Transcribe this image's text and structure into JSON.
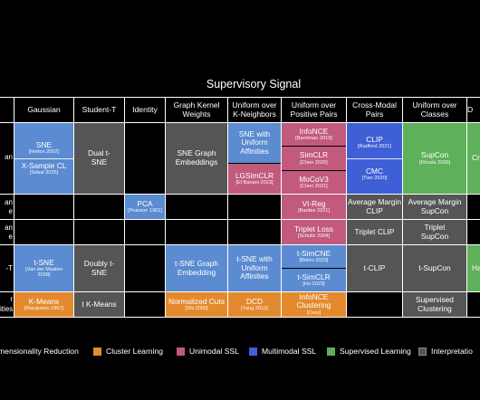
{
  "title": "Supervisory Signal",
  "headers": {
    "gaussian": "Gaussian",
    "student_t": "Student-T",
    "identity": "Identity",
    "graph_kernel": "Graph Kernel Weights",
    "uniform_kneighbors": "Uniform over K-Neighbors",
    "uniform_positive": "Uniform over Positive Pairs",
    "cross_modal": "Cross-Modal Pairs",
    "uniform_classes": "Uniform over Classes",
    "partial_d": "D"
  },
  "row_labels": {
    "r1": "an",
    "r2a": "an",
    "r2b": "e",
    "r3a": "an",
    "r3b": "e",
    "r4": "-T",
    "r5a": "r",
    "r5b": "ities"
  },
  "cells": {
    "sne": {
      "main": "SNE",
      "ref": "[Hinton 2002]"
    },
    "xsample": {
      "main": "X-Sample CL",
      "ref": "[Sobal 2025]"
    },
    "dual_tsne": {
      "main": "Dual t-SNE"
    },
    "sne_graph": {
      "main": "SNE Graph Embeddings"
    },
    "sne_uniform": {
      "main": "SNE with Uniform Affinities"
    },
    "lgsimclr": {
      "main": "LGSimCLR",
      "ref": "[El Banani 2023]"
    },
    "infonce": {
      "main": "InfoNCE",
      "ref": "[Bachman 2019]"
    },
    "simclr": {
      "main": "SimCLR",
      "ref": "[Chen 2020]"
    },
    "mocov3": {
      "main": "MoCoV3",
      "ref": "[Chen 2021]"
    },
    "clip": {
      "main": "CLIP",
      "ref": "[Radford 2021]"
    },
    "cmc": {
      "main": "CMC",
      "ref": "[Tian 2020]"
    },
    "supcon": {
      "main": "SupCon",
      "ref": "[Khosla 2020]"
    },
    "partial_cr": {
      "main": "Cr"
    },
    "pca": {
      "main": "PCA",
      "ref": "[Pearson 1901]"
    },
    "vicreg": {
      "main": "VI-Reg",
      "ref": "[Bardes 2021]"
    },
    "avg_margin_clip": {
      "main": "Average Margin CLIP"
    },
    "avg_margin_supcon": {
      "main": "Average Margin SupCon"
    },
    "triplet_loss": {
      "main": "Triplet Loss",
      "ref": "[Schultz 2004]"
    },
    "triplet_clip": {
      "main": "Triplet CLIP"
    },
    "triplet_supcon": {
      "main": "Triplet SupCon"
    },
    "tsne": {
      "main": "t-SNE",
      "ref": "[Van der Maaten 2008]"
    },
    "doubly_tsne": {
      "main": "Doubly t-SNE"
    },
    "tsne_graph": {
      "main": "t-SNE Graph Embedding"
    },
    "tsne_uniform": {
      "main": "t-SNE with Uniform Affinities"
    },
    "tsimcne": {
      "main": "t-SimCNE",
      "ref": "[Böhm 2023]"
    },
    "tsimclr": {
      "main": "t-SimCLR",
      "ref": "[Hu 2023]"
    },
    "tclip": {
      "main": "t-CLIP"
    },
    "tsupcon": {
      "main": "t-SupCon"
    },
    "partial_ha": {
      "main": "Ha"
    },
    "kmeans": {
      "main": "K-Means",
      "ref": "[Macqueen 1967]"
    },
    "tkmeans": {
      "main": "t K-Means"
    },
    "ncuts": {
      "main": "Normalized Cuts",
      "ref": "[Shi 2000]"
    },
    "dcd": {
      "main": "DCD",
      "ref": "[Yang 2012]"
    },
    "infonce_clustering": {
      "main": "InfoNCE Clustering",
      "ref": "[Ours]"
    },
    "supervised_clustering": {
      "main": "Supervised Clustering"
    }
  },
  "legend": [
    {
      "label": "mensionality Reduction",
      "color": "#5b8bd0"
    },
    {
      "label": "Cluster Learning",
      "color": "#e48a2e"
    },
    {
      "label": "Unimodal SSL",
      "color": "#c25a7c"
    },
    {
      "label": "Multimodal SSL",
      "color": "#3f5fd6"
    },
    {
      "label": "Supervised Learning",
      "color": "#5fb05a"
    },
    {
      "label": "Interpretatio",
      "color": "#555555"
    }
  ]
}
